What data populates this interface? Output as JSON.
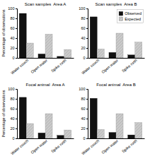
{
  "chart_data": [
    {
      "type": "bar",
      "title": "Scan samples  Area A",
      "ylabel": "Percentage of observations",
      "categories": [
        "Water couch",
        "Open water",
        "Spike rush"
      ],
      "series": [
        {
          "color": "#111111",
          "values": [
            90,
            8,
            3
          ]
        },
        {
          "color": "#cccccc",
          "values": [
            30,
            48,
            17
          ]
        }
      ],
      "ylim": [
        0,
        100
      ],
      "yticks": [
        0,
        20,
        40,
        60,
        80,
        100
      ]
    },
    {
      "type": "bar",
      "title": "Scan samples  Area B",
      "categories": [
        "Water couch",
        "Open water",
        "Spike rush"
      ],
      "series": [
        {
          "name": "Observed",
          "color": "#111111",
          "values": [
            83,
            11,
            6
          ]
        },
        {
          "name": "Expected",
          "color": "#cccccc",
          "values": [
            18,
            50,
            32
          ]
        }
      ],
      "ylim": [
        0,
        100
      ],
      "yticks": [
        0,
        20,
        40,
        60,
        80,
        100
      ],
      "legend": "upper right"
    },
    {
      "type": "bar",
      "title": "Focal animal  Area A",
      "ylabel": "Percentage of observations",
      "categories": [
        "Water couch",
        "Open water",
        "Spike rush"
      ],
      "series": [
        {
          "color": "#111111",
          "values": [
            83,
            11,
            6
          ]
        },
        {
          "color": "#cccccc",
          "values": [
            30,
            50,
            17
          ]
        }
      ],
      "ylim": [
        0,
        100
      ],
      "yticks": [
        0,
        20,
        40,
        60,
        80,
        100
      ]
    },
    {
      "type": "bar",
      "title": "Focal animal  Area B",
      "categories": [
        "Water couch",
        "Open water",
        "Spike rush"
      ],
      "series": [
        {
          "color": "#111111",
          "values": [
            81,
            12,
            7
          ]
        },
        {
          "color": "#cccccc",
          "values": [
            18,
            50,
            32
          ]
        }
      ],
      "ylim": [
        0,
        100
      ],
      "yticks": [
        0,
        20,
        40,
        60,
        80,
        100
      ]
    }
  ]
}
